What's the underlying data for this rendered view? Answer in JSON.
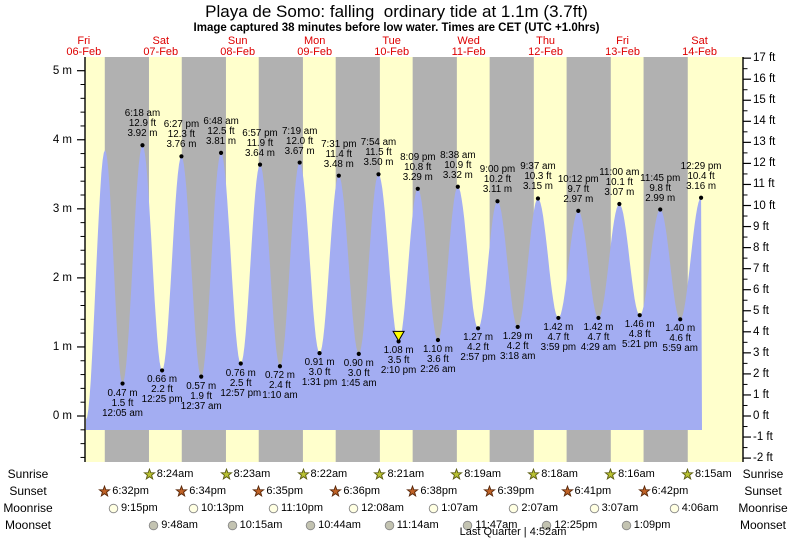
{
  "chart_data": {
    "type": "area",
    "title": "Playa de Somo: falling  ordinary tide at 1.1m (3.7ft)",
    "subtitle": "Image captured 38 minutes before low water. Times are CET (UTC +1.0hrs)",
    "legend": "none",
    "grid": "off",
    "x_axis": {
      "days": [
        {
          "label": "Fri",
          "date": "06-Feb"
        },
        {
          "label": "Sat",
          "date": "07-Feb"
        },
        {
          "label": "Sun",
          "date": "08-Feb"
        },
        {
          "label": "Mon",
          "date": "09-Feb"
        },
        {
          "label": "Tue",
          "date": "10-Feb"
        },
        {
          "label": "Wed",
          "date": "11-Feb"
        },
        {
          "label": "Thu",
          "date": "12-Feb"
        },
        {
          "label": "Fri",
          "date": "13-Feb"
        },
        {
          "label": "Sat",
          "date": "14-Feb"
        }
      ]
    },
    "y_axis_left": {
      "unit": "m",
      "range": [
        -0.65,
        5.2
      ],
      "ticks": [
        {
          "v": 5,
          "label": "5 m"
        },
        {
          "v": 4,
          "label": "4 m"
        },
        {
          "v": 3,
          "label": "3 m"
        },
        {
          "v": 2,
          "label": "2 m"
        },
        {
          "v": 1,
          "label": "1 m"
        },
        {
          "v": 0,
          "label": "0 m"
        }
      ]
    },
    "y_axis_right": {
      "unit": "ft",
      "range": [
        -2,
        17
      ],
      "ticks": [
        {
          "v": 17,
          "label": "17 ft"
        },
        {
          "v": 16,
          "label": "16 ft"
        },
        {
          "v": 15,
          "label": "15 ft"
        },
        {
          "v": 14,
          "label": "14 ft"
        },
        {
          "v": 13,
          "label": "13 ft"
        },
        {
          "v": 12,
          "label": "12 ft"
        },
        {
          "v": 11,
          "label": "11 ft"
        },
        {
          "v": 10,
          "label": "10 ft"
        },
        {
          "v": 9,
          "label": "9 ft"
        },
        {
          "v": 8,
          "label": "8 ft"
        },
        {
          "v": 7,
          "label": "7 ft"
        },
        {
          "v": 6,
          "label": "6 ft"
        },
        {
          "v": 5,
          "label": "5 ft"
        },
        {
          "v": 4,
          "label": "4 ft"
        },
        {
          "v": 3,
          "label": "3 ft"
        },
        {
          "v": 2,
          "label": "2 ft"
        },
        {
          "v": 1,
          "label": "1 ft"
        },
        {
          "v": 0,
          "label": "0 ft"
        },
        {
          "v": -1,
          "label": "-1 ft"
        },
        {
          "v": -2,
          "label": "-2 ft"
        }
      ]
    },
    "tides": [
      {
        "type": "low",
        "day": 1,
        "time": "12:05 am",
        "height_m": 0.47,
        "label_m": "0.47 m",
        "label_ft": "1.5 ft"
      },
      {
        "type": "high",
        "day": 1,
        "time": "6:18 am",
        "height_m": 3.92,
        "label_m": "3.92 m",
        "label_ft": "12.9 ft"
      },
      {
        "type": "low",
        "day": 1,
        "time": "12:25 pm",
        "height_m": 0.66,
        "label_m": "0.66 m",
        "label_ft": "2.2 ft"
      },
      {
        "type": "high",
        "day": 1,
        "time": "6:27 pm",
        "height_m": 3.76,
        "label_m": "3.76 m",
        "label_ft": "12.3 ft"
      },
      {
        "type": "low",
        "day": 2,
        "time": "12:37 am",
        "height_m": 0.57,
        "label_m": "0.57 m",
        "label_ft": "1.9 ft"
      },
      {
        "type": "high",
        "day": 2,
        "time": "6:48 am",
        "height_m": 3.81,
        "label_m": "3.81 m",
        "label_ft": "12.5 ft"
      },
      {
        "type": "low",
        "day": 2,
        "time": "12:57 pm",
        "height_m": 0.76,
        "label_m": "0.76 m",
        "label_ft": "2.5 ft"
      },
      {
        "type": "high",
        "day": 2,
        "time": "6:57 pm",
        "height_m": 3.64,
        "label_m": "3.64 m",
        "label_ft": "11.9 ft"
      },
      {
        "type": "low",
        "day": 3,
        "time": "1:10 am",
        "height_m": 0.72,
        "label_m": "0.72 m",
        "label_ft": "2.4 ft"
      },
      {
        "type": "high",
        "day": 3,
        "time": "7:19 am",
        "height_m": 3.67,
        "label_m": "3.67 m",
        "label_ft": "12.0 ft"
      },
      {
        "type": "low",
        "day": 3,
        "time": "1:31 pm",
        "height_m": 0.91,
        "label_m": "0.91 m",
        "label_ft": "3.0 ft"
      },
      {
        "type": "high",
        "day": 3,
        "time": "7:31 pm",
        "height_m": 3.48,
        "label_m": "3.48 m",
        "label_ft": "11.4 ft"
      },
      {
        "type": "low",
        "day": 4,
        "time": "1:45 am",
        "height_m": 0.9,
        "label_m": "0.90 m",
        "label_ft": "3.0 ft"
      },
      {
        "type": "high",
        "day": 4,
        "time": "7:54 am",
        "height_m": 3.5,
        "label_m": "3.50 m",
        "label_ft": "11.5 ft"
      },
      {
        "type": "low",
        "day": 4,
        "time": "2:10 pm",
        "height_m": 1.08,
        "label_m": "1.08 m",
        "label_ft": "3.5 ft",
        "current": true
      },
      {
        "type": "high",
        "day": 4,
        "time": "8:09 pm",
        "height_m": 3.29,
        "label_m": "3.29 m",
        "label_ft": "10.8 ft"
      },
      {
        "type": "low",
        "day": 5,
        "time": "2:26 am",
        "height_m": 1.1,
        "label_m": "1.10 m",
        "label_ft": "3.6 ft"
      },
      {
        "type": "high",
        "day": 5,
        "time": "8:38 am",
        "height_m": 3.32,
        "label_m": "3.32 m",
        "label_ft": "10.9 ft"
      },
      {
        "type": "low",
        "day": 5,
        "time": "2:57 pm",
        "height_m": 1.27,
        "label_m": "1.27 m",
        "label_ft": "4.2 ft"
      },
      {
        "type": "high",
        "day": 5,
        "time": "9:00 pm",
        "height_m": 3.11,
        "label_m": "3.11 m",
        "label_ft": "10.2 ft"
      },
      {
        "type": "low",
        "day": 6,
        "time": "3:18 am",
        "height_m": 1.29,
        "label_m": "1.29 m",
        "label_ft": "4.2 ft"
      },
      {
        "type": "high",
        "day": 6,
        "time": "9:37 am",
        "height_m": 3.15,
        "label_m": "3.15 m",
        "label_ft": "10.3 ft"
      },
      {
        "type": "low",
        "day": 6,
        "time": "3:59 pm",
        "height_m": 1.42,
        "label_m": "1.42 m",
        "label_ft": "4.7 ft"
      },
      {
        "type": "high",
        "day": 6,
        "time": "10:12 pm",
        "height_m": 2.97,
        "label_m": "2.97 m",
        "label_ft": "9.7 ft"
      },
      {
        "type": "low",
        "day": 7,
        "time": "4:29 am",
        "height_m": 1.42,
        "label_m": "1.42 m",
        "label_ft": "4.7 ft"
      },
      {
        "type": "high",
        "day": 7,
        "time": "11:00 am",
        "height_m": 3.07,
        "label_m": "3.07 m",
        "label_ft": "10.1 ft"
      },
      {
        "type": "low",
        "day": 7,
        "time": "5:21 pm",
        "height_m": 1.46,
        "label_m": "1.46 m",
        "label_ft": "4.8 ft"
      },
      {
        "type": "high",
        "day": 7,
        "time": "11:45 pm",
        "height_m": 2.99,
        "label_m": "2.99 m",
        "label_ft": "9.8 ft"
      },
      {
        "type": "low",
        "day": 8,
        "time": "5:59 am",
        "height_m": 1.4,
        "label_m": "1.40 m",
        "label_ft": "4.6 ft"
      },
      {
        "type": "high",
        "day": 8,
        "time": "12:29 pm",
        "height_m": 3.16,
        "label_m": "3.16 m",
        "label_ft": "10.4 ft"
      }
    ],
    "colors": {
      "plot_bg": "#ffffcc",
      "night_band": "#b1b1b1",
      "tide_fill": "#a3adf2",
      "day_label": "#dd0000",
      "marker_fill": "#ffff00",
      "axis": "#000000"
    }
  },
  "astro": {
    "rows": [
      {
        "key": "sunrise",
        "label": "Sunrise",
        "icon": "sunrise-star-icon",
        "fill": "#b9c232",
        "stroke": "#5a5c10",
        "events": [
          {
            "day": 1,
            "time": "8:24am"
          },
          {
            "day": 2,
            "time": "8:23am"
          },
          {
            "day": 3,
            "time": "8:22am"
          },
          {
            "day": 4,
            "time": "8:21am"
          },
          {
            "day": 5,
            "time": "8:19am"
          },
          {
            "day": 6,
            "time": "8:18am"
          },
          {
            "day": 7,
            "time": "8:16am"
          },
          {
            "day": 8,
            "time": "8:15am"
          }
        ]
      },
      {
        "key": "sunset",
        "label": "Sunset",
        "icon": "sunset-star-icon",
        "fill": "#c06226",
        "stroke": "#59280a",
        "events": [
          {
            "day": 0,
            "time": "6:32pm"
          },
          {
            "day": 1,
            "time": "6:34pm"
          },
          {
            "day": 2,
            "time": "6:35pm"
          },
          {
            "day": 3,
            "time": "6:36pm"
          },
          {
            "day": 4,
            "time": "6:38pm"
          },
          {
            "day": 5,
            "time": "6:39pm"
          },
          {
            "day": 6,
            "time": "6:41pm"
          },
          {
            "day": 7,
            "time": "6:42pm"
          }
        ]
      },
      {
        "key": "moonrise",
        "label": "Moonrise",
        "icon": "moonrise-circle-icon",
        "fill": "#ffffe2",
        "stroke": "#8a8a8a",
        "events": [
          {
            "day": 0,
            "time": "9:15pm"
          },
          {
            "day": 1,
            "time": "10:13pm"
          },
          {
            "day": 2,
            "time": "11:10pm"
          },
          {
            "day": 4,
            "time": "12:08am"
          },
          {
            "day": 5,
            "time": "1:07am"
          },
          {
            "day": 6,
            "time": "2:07am"
          },
          {
            "day": 7,
            "time": "3:07am"
          },
          {
            "day": 8,
            "time": "4:06am"
          }
        ]
      },
      {
        "key": "moonset",
        "label": "Moonset",
        "icon": "moonset-circle-icon",
        "fill": "#c3c3b1",
        "stroke": "#8a8a8a",
        "events": [
          {
            "day": 1,
            "time": "9:48am"
          },
          {
            "day": 2,
            "time": "10:15am"
          },
          {
            "day": 3,
            "time": "10:44am"
          },
          {
            "day": 4,
            "time": "11:14am"
          },
          {
            "day": 5,
            "time": "11:47am"
          },
          {
            "day": 6,
            "time": "12:25pm"
          },
          {
            "day": 7,
            "time": "1:09pm"
          }
        ]
      }
    ],
    "moon_phase": "Last Quarter | 4:52am"
  }
}
